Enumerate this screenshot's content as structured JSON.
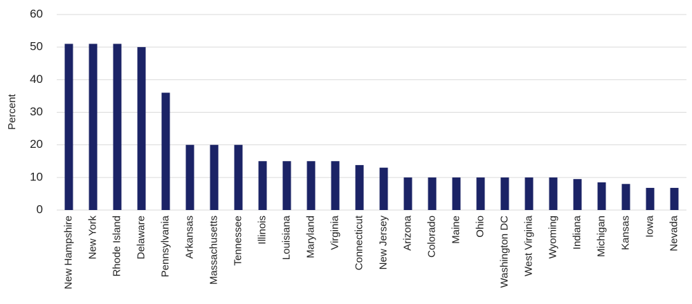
{
  "chart_data": {
    "type": "bar",
    "y_label": "Percent",
    "categories": [
      "New Hampshire",
      "New York",
      "Rhode Island",
      "Delaware",
      "Pennsylvania",
      "Arkansas",
      "Massachusetts",
      "Tennessee",
      "Illinois",
      "Louisiana",
      "Maryland",
      "Virginia",
      "Connecticut",
      "New Jersey",
      "Arizona",
      "Colorado",
      "Maine",
      "Ohio",
      "Washington DC",
      "West Virginia",
      "Wyoming",
      "Indiana",
      "Michigan",
      "Kansas",
      "Iowa",
      "Nevada"
    ],
    "values": [
      51,
      51,
      51,
      50,
      36,
      20,
      20,
      20,
      15,
      15,
      15,
      15,
      13.8,
      13,
      10,
      10,
      10,
      10,
      10,
      10,
      10,
      9.5,
      8.5,
      8,
      6.8,
      6.8
    ],
    "color": "#1b2366",
    "ylim": [
      0,
      60
    ],
    "yticks": [
      0,
      10,
      20,
      30,
      40,
      50,
      60
    ],
    "grid": true
  }
}
